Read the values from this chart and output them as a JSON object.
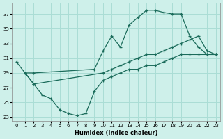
{
  "xlabel": "Humidex (Indice chaleur)",
  "bg_color": "#cef0ea",
  "grid_color": "#aaddd5",
  "line_color": "#1a6b5a",
  "xlim": [
    -0.5,
    23.5
  ],
  "ylim": [
    22.5,
    38.5
  ],
  "yticks": [
    23,
    25,
    27,
    29,
    31,
    33,
    35,
    37
  ],
  "xticks": [
    0,
    1,
    2,
    3,
    4,
    5,
    6,
    7,
    8,
    9,
    10,
    11,
    12,
    13,
    14,
    15,
    16,
    17,
    18,
    19,
    20,
    21,
    22,
    23
  ],
  "line1_x": [
    0,
    1,
    2,
    9,
    10,
    11,
    12,
    13,
    14,
    15,
    16,
    17,
    18,
    19,
    20,
    21,
    22,
    23
  ],
  "line1_y": [
    30.5,
    29.0,
    29.0,
    29.5,
    32.0,
    34.0,
    32.5,
    35.5,
    36.5,
    37.5,
    37.5,
    37.2,
    37.0,
    37.0,
    34.0,
    32.5,
    31.5,
    31.5
  ],
  "line2_x": [
    1,
    2,
    10,
    11,
    12,
    13,
    14,
    15,
    16,
    17,
    18,
    19,
    20,
    21,
    22,
    23
  ],
  "line2_y": [
    29.0,
    27.5,
    29.0,
    29.5,
    30.0,
    30.5,
    31.0,
    31.5,
    31.5,
    32.0,
    32.5,
    33.0,
    33.5,
    34.0,
    32.0,
    31.5
  ],
  "line3_x": [
    1,
    2,
    3,
    4,
    5,
    6,
    7,
    8,
    9,
    10,
    11,
    12,
    13,
    14,
    15,
    16,
    17,
    18,
    19,
    20,
    21,
    22,
    23
  ],
  "line3_y": [
    29.0,
    27.5,
    26.0,
    25.5,
    24.0,
    23.5,
    23.2,
    23.5,
    26.5,
    28.0,
    28.5,
    29.0,
    29.5,
    29.5,
    30.0,
    30.0,
    30.5,
    31.0,
    31.5,
    31.5,
    31.5,
    31.5,
    31.5
  ]
}
